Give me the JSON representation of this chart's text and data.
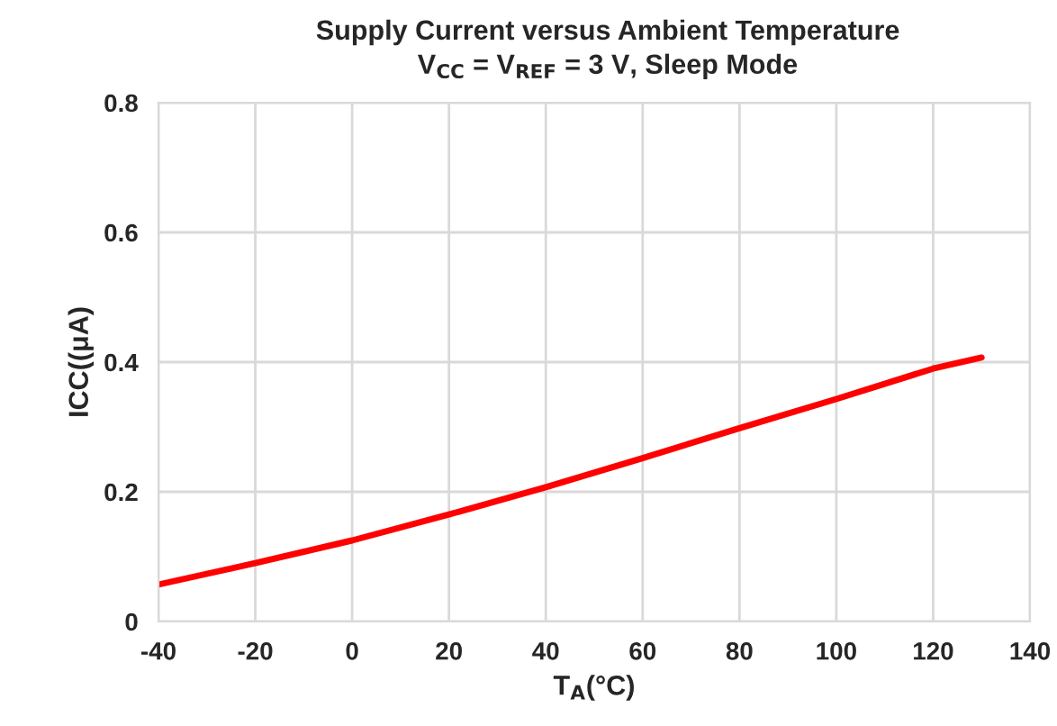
{
  "chart_data": {
    "type": "line",
    "title": "Supply Current versus Ambient Temperature",
    "subtitle": "V$_{CC}$ = V$_{REF}$ = 3 V, Sleep Mode",
    "xlabel": "T$_{A}$(°C)",
    "ylabel": "ICC((μA)",
    "x": [
      -40,
      -20,
      0,
      20,
      40,
      60,
      80,
      100,
      120,
      130
    ],
    "series": [
      {
        "color": "#ff0000",
        "values": [
          0.057,
          0.09,
          0.125,
          0.165,
          0.207,
          0.252,
          0.298,
          0.343,
          0.39,
          0.407
        ]
      }
    ],
    "xlim": [
      -40,
      140
    ],
    "xticks": [
      -40,
      -20,
      0,
      20,
      40,
      60,
      80,
      100,
      120,
      140
    ],
    "ylim": [
      0,
      0.8
    ],
    "yticks": [
      0,
      0.2,
      0.4,
      0.6,
      0.8
    ],
    "grid": true,
    "line_style": "solid"
  }
}
